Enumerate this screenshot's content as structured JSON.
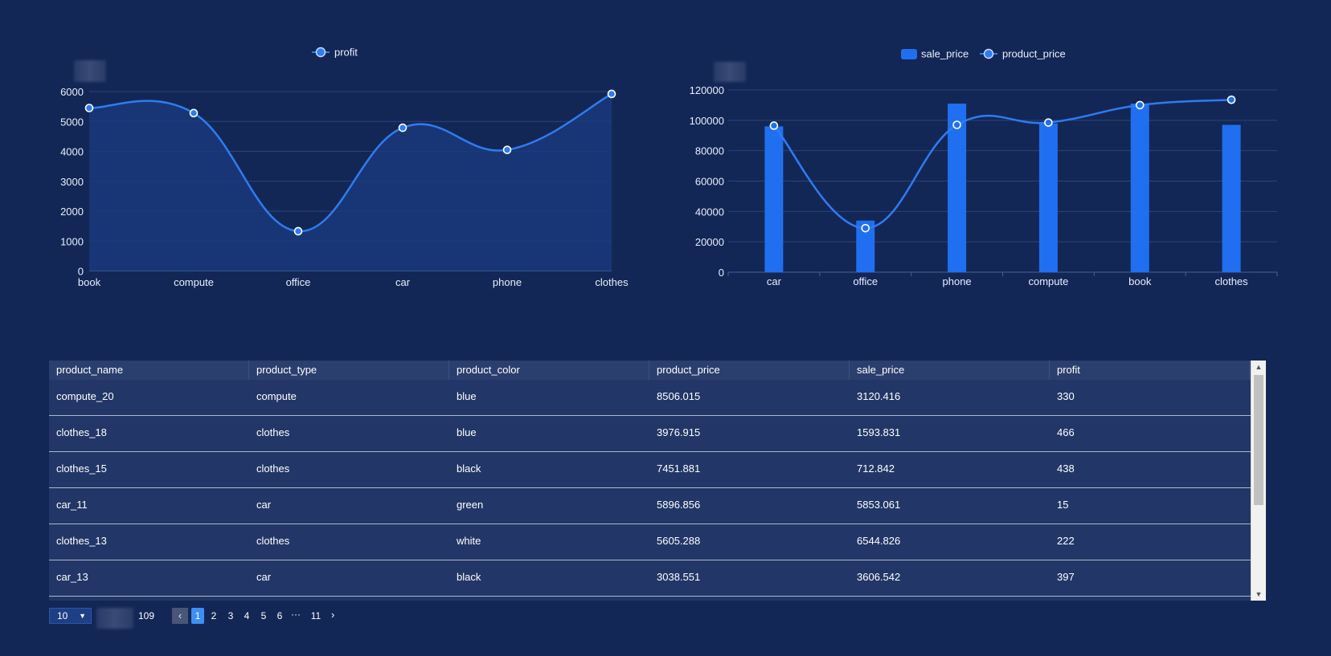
{
  "chart_data": [
    {
      "type": "area",
      "legend": [
        "profit"
      ],
      "categories": [
        "book",
        "compute",
        "office",
        "car",
        "phone",
        "clothes"
      ],
      "series": [
        {
          "name": "profit",
          "values": [
            5450,
            5280,
            1330,
            4790,
            4050,
            5920
          ]
        }
      ],
      "yticks": [
        "0",
        "1000",
        "2000",
        "3000",
        "4000",
        "5000",
        "6000"
      ],
      "ylim": [
        0,
        6000
      ],
      "colors": {
        "line": "#2f7bf2",
        "area": "#1a3a7a",
        "grid": "#2a4478"
      }
    },
    {
      "type": "bar",
      "legend": [
        "sale_price",
        "product_price"
      ],
      "categories": [
        "car",
        "office",
        "phone",
        "compute",
        "book",
        "clothes"
      ],
      "series": [
        {
          "name": "sale_price",
          "type": "bar",
          "values": [
            96000,
            34000,
            111000,
            98000,
            111000,
            97000
          ]
        },
        {
          "name": "product_price",
          "type": "line",
          "values": [
            96500,
            29000,
            97000,
            98500,
            110000,
            113500
          ]
        }
      ],
      "yticks": [
        "0",
        "20000",
        "40000",
        "60000",
        "80000",
        "100000",
        "120000"
      ],
      "ylim": [
        0,
        120000
      ],
      "colors": {
        "bar": "#206ff0",
        "line": "#2f7bf2",
        "grid": "#2a4478"
      }
    }
  ],
  "table": {
    "headers": [
      "product_name",
      "product_type",
      "product_color",
      "product_price",
      "sale_price",
      "profit"
    ],
    "rows": [
      [
        "compute_20",
        "compute",
        "blue",
        "8506.015",
        "3120.416",
        "330"
      ],
      [
        "clothes_18",
        "clothes",
        "blue",
        "3976.915",
        "1593.831",
        "466"
      ],
      [
        "clothes_15",
        "clothes",
        "black",
        "7451.881",
        "712.842",
        "438"
      ],
      [
        "car_11",
        "car",
        "green",
        "5896.856",
        "5853.061",
        "15"
      ],
      [
        "clothes_13",
        "clothes",
        "white",
        "5605.288",
        "6544.826",
        "222"
      ],
      [
        "car_13",
        "car",
        "black",
        "3038.551",
        "3606.542",
        "397"
      ]
    ]
  },
  "pagination": {
    "page_size": "10",
    "total": "109",
    "pages": [
      "1",
      "2",
      "3",
      "4",
      "5",
      "6"
    ],
    "ellipsis": "···",
    "last_page": "11",
    "current": "1",
    "prev_icon": "chevron-left-icon",
    "next_icon": "chevron-right-icon",
    "prev_glyph": "‹",
    "next_glyph": "›",
    "caret_glyph": "▼"
  },
  "scrollbar": {
    "up_glyph": "▲",
    "down_glyph": "▼"
  }
}
